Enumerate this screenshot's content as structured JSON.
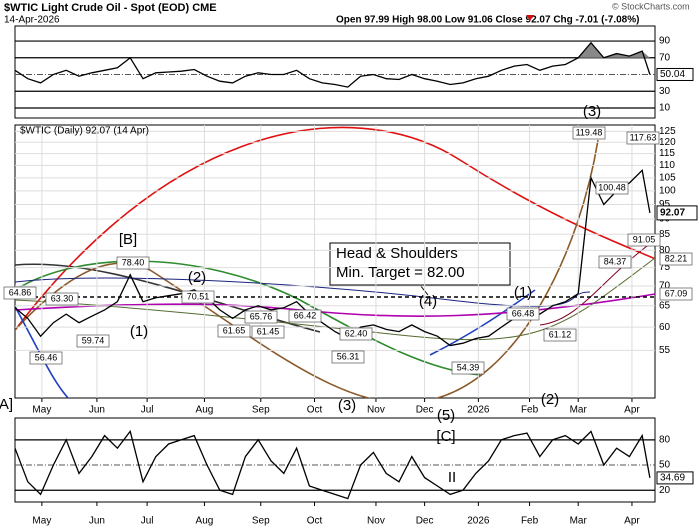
{
  "chart_data": {
    "type": "line",
    "title": "$WTIC Light Crude Oil - Spot (EOD) CME",
    "subtitle": "14-Apr-2026",
    "quote": "Open 97.99 High 98.00 Low 91.06 Close 92.07 Chg -7.01 (-7.08%)",
    "credit": "© StockCharts.com",
    "label": "$WTIC (Daily) 92.07 (14 Apr)",
    "log_scale": true,
    "grid": true,
    "color": "#000000",
    "x": [
      0,
      5,
      10,
      15,
      20,
      25,
      30,
      35,
      40,
      45,
      50,
      55,
      60,
      65,
      70,
      75,
      80,
      85,
      90,
      95,
      100,
      105,
      110,
      115,
      120,
      125,
      130,
      135,
      140,
      145,
      150,
      155,
      160,
      165,
      170,
      175,
      180,
      185,
      190,
      195,
      200,
      205,
      210,
      215,
      220,
      225,
      230,
      235,
      240,
      245,
      248
    ],
    "xlim": [
      0,
      250
    ],
    "xticks": [
      {
        "value": 10.5,
        "label": "May"
      },
      {
        "value": 32,
        "label": "Jun"
      },
      {
        "value": 51.6,
        "label": "Jul"
      },
      {
        "value": 74,
        "label": "Aug"
      },
      {
        "value": 96,
        "label": "Sep"
      },
      {
        "value": 117,
        "label": "Oct"
      },
      {
        "value": 141,
        "label": "Nov"
      },
      {
        "value": 160,
        "label": "Dec"
      },
      {
        "value": 181,
        "label": "2026"
      },
      {
        "value": 201,
        "label": "Feb"
      },
      {
        "value": 220,
        "label": "Mar"
      },
      {
        "value": 241,
        "label": "Apr"
      }
    ],
    "ylim": [
      46,
      128
    ],
    "yticks": [
      55,
      60,
      65,
      70,
      75,
      80,
      85,
      90,
      95,
      100,
      105,
      110,
      115,
      120,
      125
    ],
    "values": [
      64.5,
      62,
      58,
      61,
      63,
      61,
      62.5,
      64,
      66,
      73,
      66,
      67,
      67.5,
      68,
      69,
      67,
      64,
      62,
      64,
      65,
      64,
      64.5,
      66,
      63,
      61,
      59,
      57.5,
      60,
      60.5,
      59.5,
      59,
      60.5,
      59,
      58,
      56,
      56.5,
      57.5,
      58,
      60,
      62,
      64,
      63,
      65,
      66,
      68,
      105,
      95,
      100,
      103,
      108,
      92.07
    ],
    "panels": [
      {
        "ylim": [
          -2,
          108
        ],
        "yticks": [
          10,
          30,
          50,
          70,
          90
        ],
        "color": "#000000",
        "fill": "#888888",
        "values": [
          55,
          45,
          40,
          50,
          55,
          48,
          52,
          55,
          58,
          70,
          45,
          52,
          53,
          54,
          56,
          48,
          42,
          40,
          48,
          52,
          50,
          50,
          55,
          45,
          40,
          38,
          35,
          48,
          50,
          45,
          44,
          50,
          45,
          42,
          38,
          40,
          45,
          48,
          55,
          60,
          62,
          55,
          60,
          62,
          70,
          88,
          70,
          75,
          72,
          78,
          50.04
        ]
      },
      {
        "ylim": [
          6,
          106
        ],
        "yticks": [
          20,
          50,
          80
        ],
        "color": "#000000",
        "values": [
          70,
          30,
          15,
          50,
          80,
          40,
          60,
          85,
          70,
          90,
          30,
          60,
          75,
          80,
          85,
          50,
          20,
          15,
          60,
          80,
          55,
          40,
          70,
          25,
          20,
          15,
          10,
          50,
          65,
          40,
          30,
          60,
          35,
          25,
          15,
          20,
          40,
          55,
          80,
          85,
          88,
          60,
          80,
          85,
          75,
          90,
          50,
          70,
          60,
          85,
          34.69
        ]
      }
    ],
    "annotations": [
      {
        "text": "64.86"
      },
      {
        "text": "63.30"
      },
      {
        "text": "56.46"
      },
      {
        "text": "59.74"
      },
      {
        "text": "78.40"
      },
      {
        "text": "(1)"
      },
      {
        "text": "[B]",
        "color": "#1f3fbf"
      },
      {
        "text": "(2)"
      },
      {
        "text": "70.51"
      },
      {
        "text": "65.76"
      },
      {
        "text": "66.42"
      },
      {
        "text": "61.65"
      },
      {
        "text": "61.45"
      },
      {
        "text": "62.40"
      },
      {
        "text": "56.31"
      },
      {
        "text": "(3)"
      },
      {
        "text": "Head & Shoulders"
      },
      {
        "text": "Min. Target = 82.00"
      },
      {
        "text": "(4)"
      },
      {
        "text": "(5)"
      },
      {
        "text": "[C]",
        "color": "#1f3fbf"
      },
      {
        "text": "II",
        "color": "#d01010"
      },
      {
        "text": "54.39"
      },
      {
        "text": "(1)"
      },
      {
        "text": "66.48"
      },
      {
        "text": "61.12"
      },
      {
        "text": "(2)"
      },
      {
        "text": "(3)"
      },
      {
        "text": "119.48"
      },
      {
        "text": "117.63"
      },
      {
        "text": "100.48"
      },
      {
        "text": "84.37"
      },
      {
        "text": "91.05"
      },
      {
        "text": "A]",
        "color": "#1f3fbf"
      },
      {
        "text": "82.21"
      },
      {
        "text": "67.09"
      }
    ]
  }
}
